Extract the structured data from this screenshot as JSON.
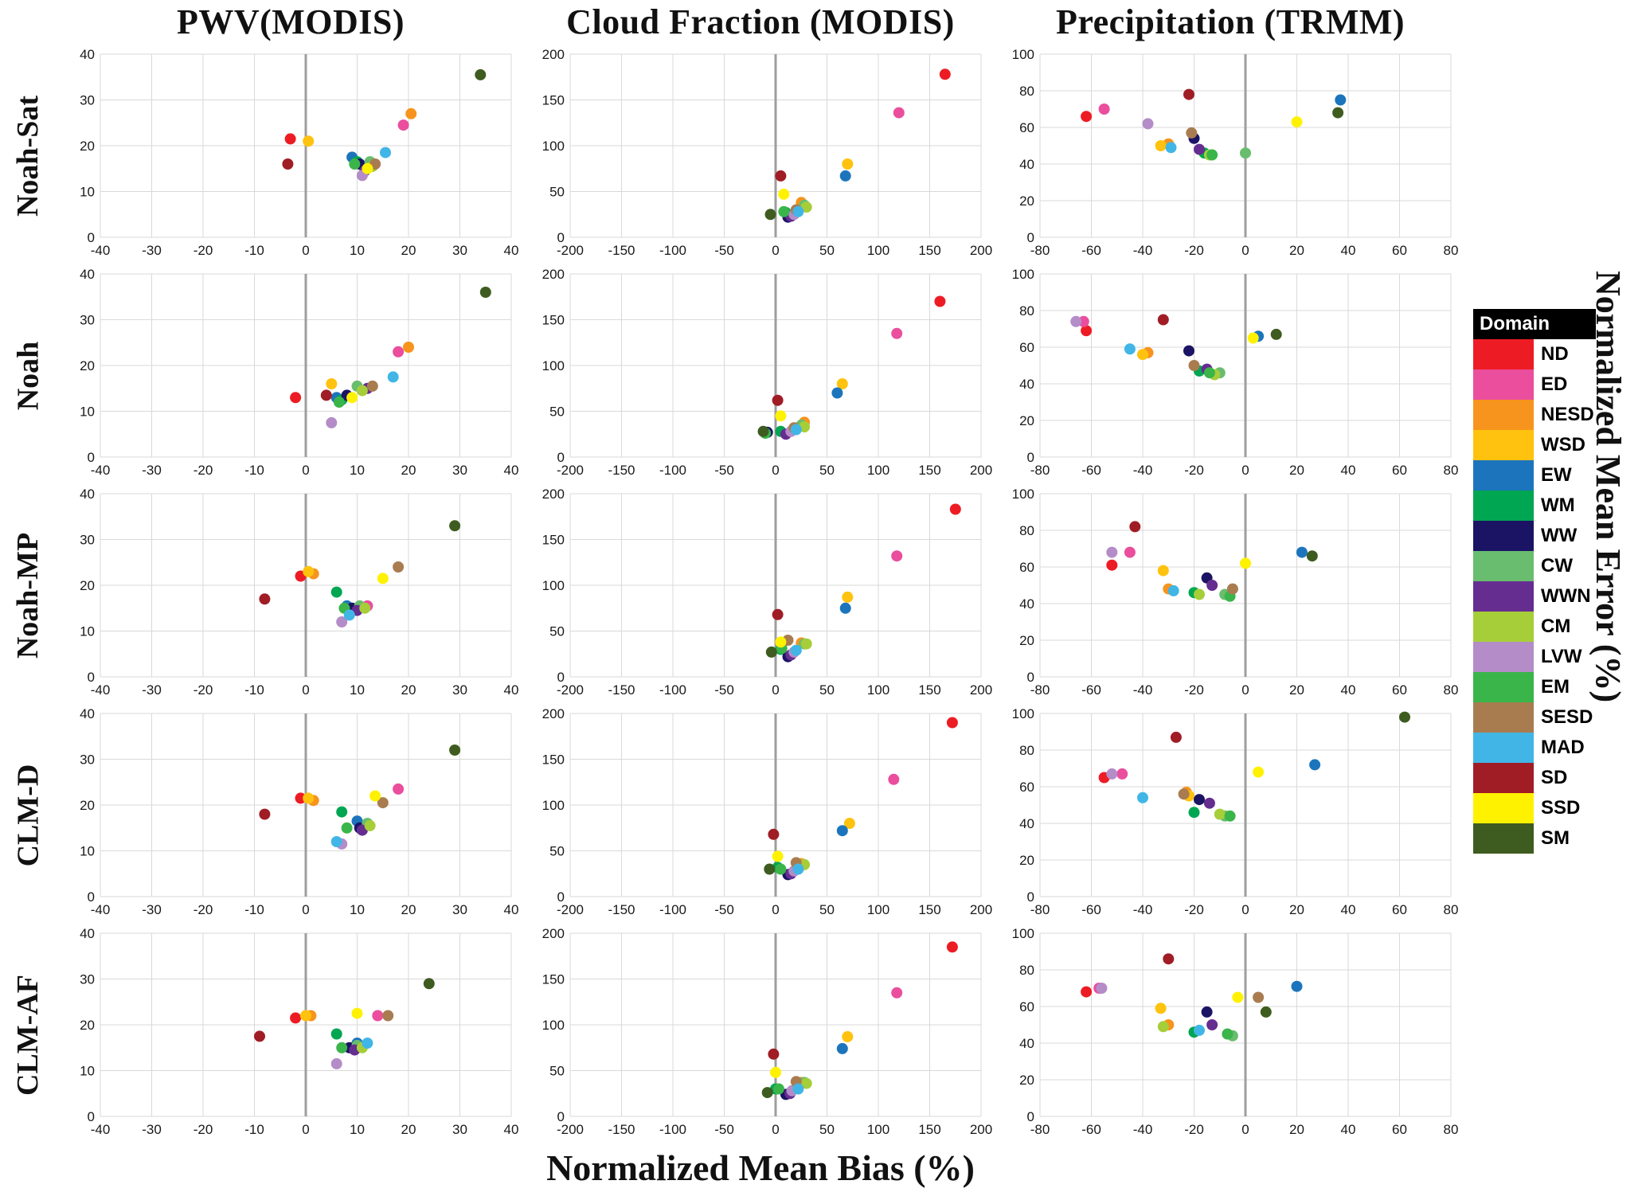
{
  "columns": [
    {
      "title": "PWV(MODIS)"
    },
    {
      "title": "Cloud Fraction (MODIS)"
    },
    {
      "title": "Precipitation (TRMM)"
    }
  ],
  "rows": [
    "Noah-Sat",
    "Noah",
    "Noah-MP",
    "CLM-D",
    "CLM-AF"
  ],
  "axis": {
    "x_label": "Normalized Mean Bias  (%)",
    "y_label": "Normalized Mean Error (%)"
  },
  "style": {
    "gridline_color": "#D9D9D9",
    "zero_line_color": "#9E9E9E",
    "point_radius": 7
  },
  "legend": {
    "header": "Domain",
    "items": [
      {
        "label": "ND",
        "color": "#ED1C24"
      },
      {
        "label": "ED",
        "color": "#EA4E9D"
      },
      {
        "label": "NESD",
        "color": "#F7941D"
      },
      {
        "label": "WSD",
        "color": "#FFC20E"
      },
      {
        "label": "EW",
        "color": "#1C75BC"
      },
      {
        "label": "WM",
        "color": "#00A651"
      },
      {
        "label": "WW",
        "color": "#1B1464"
      },
      {
        "label": "CW",
        "color": "#69BD6E"
      },
      {
        "label": "WWN",
        "color": "#662D91"
      },
      {
        "label": "CM",
        "color": "#A6CE39"
      },
      {
        "label": "LVW",
        "color": "#B48CC8"
      },
      {
        "label": "EM",
        "color": "#3AB54A"
      },
      {
        "label": "SESD",
        "color": "#A97C50"
      },
      {
        "label": "MAD",
        "color": "#41B6E6"
      },
      {
        "label": "SD",
        "color": "#A01D26"
      },
      {
        "label": "SSD",
        "color": "#FFF200"
      },
      {
        "label": "SM",
        "color": "#3E5C1F"
      }
    ]
  },
  "chart_data": [
    {
      "type": "scatter",
      "model": "Noah-Sat",
      "variable": "PWV(MODIS)",
      "xlim": [
        -40,
        40
      ],
      "xstep": 10,
      "ylim": [
        0,
        40
      ],
      "ystep": 10,
      "points": {
        "ND": [
          -3,
          21.5
        ],
        "ED": [
          19,
          24.5
        ],
        "NESD": [
          20.5,
          27
        ],
        "WSD": [
          0.5,
          21
        ],
        "EW": [
          9,
          17.5
        ],
        "WM": [
          10,
          16.5
        ],
        "WW": [
          10.5,
          16
        ],
        "CW": [
          12.5,
          16.5
        ],
        "WWN": [
          11.5,
          14.5
        ],
        "CM": [
          13,
          15.5
        ],
        "LVW": [
          11,
          13.5
        ],
        "EM": [
          9.5,
          16
        ],
        "SESD": [
          13.5,
          16
        ],
        "MAD": [
          15.5,
          18.5
        ],
        "SD": [
          -3.5,
          16
        ],
        "SSD": [
          12,
          15
        ],
        "SM": [
          34,
          35.5
        ]
      }
    },
    {
      "type": "scatter",
      "model": "Noah-Sat",
      "variable": "Cloud Fraction (MODIS)",
      "xlim": [
        -200,
        200
      ],
      "xstep": 50,
      "ylim": [
        0,
        200
      ],
      "ystep": 50,
      "points": {
        "ND": [
          165,
          178
        ],
        "ED": [
          120,
          136
        ],
        "NESD": [
          25,
          38
        ],
        "WSD": [
          70,
          80
        ],
        "EW": [
          68,
          67
        ],
        "WM": [
          10,
          27
        ],
        "WW": [
          12,
          22
        ],
        "CW": [
          28,
          35
        ],
        "WWN": [
          15,
          23
        ],
        "CM": [
          30,
          33
        ],
        "LVW": [
          18,
          25
        ],
        "EM": [
          8,
          28
        ],
        "SESD": [
          20,
          30
        ],
        "MAD": [
          22,
          28
        ],
        "SD": [
          5,
          67
        ],
        "SSD": [
          8,
          47
        ],
        "SM": [
          -5,
          25
        ]
      }
    },
    {
      "type": "scatter",
      "model": "Noah-Sat",
      "variable": "Precipitation (TRMM)",
      "xlim": [
        -80,
        80
      ],
      "xstep": 20,
      "ylim": [
        0,
        100
      ],
      "ystep": 20,
      "points": {
        "ND": [
          -62,
          66
        ],
        "ED": [
          -55,
          70
        ],
        "NESD": [
          -30,
          51
        ],
        "WSD": [
          -33,
          50
        ],
        "EW": [
          37,
          75
        ],
        "WM": [
          -16,
          46
        ],
        "WW": [
          -20,
          54
        ],
        "CW": [
          0,
          46
        ],
        "WWN": [
          -18,
          48
        ],
        "CM": [
          -14,
          45
        ],
        "LVW": [
          -38,
          62
        ],
        "EM": [
          -13,
          45
        ],
        "SESD": [
          -21,
          57
        ],
        "MAD": [
          -29,
          49
        ],
        "SD": [
          -22,
          78
        ],
        "SSD": [
          20,
          63
        ],
        "SM": [
          36,
          68
        ]
      }
    },
    {
      "type": "scatter",
      "model": "Noah",
      "variable": "PWV(MODIS)",
      "xlim": [
        -40,
        40
      ],
      "xstep": 10,
      "ylim": [
        0,
        40
      ],
      "ystep": 10,
      "points": {
        "ND": [
          -2,
          13
        ],
        "ED": [
          18,
          23
        ],
        "NESD": [
          20,
          24
        ],
        "WSD": [
          5,
          16
        ],
        "EW": [
          6,
          13
        ],
        "WM": [
          7,
          12.5
        ],
        "WW": [
          8,
          13.5
        ],
        "CW": [
          10,
          15.5
        ],
        "WWN": [
          12,
          15
        ],
        "CM": [
          11,
          14.5
        ],
        "LVW": [
          5,
          7.5
        ],
        "EM": [
          6.5,
          12
        ],
        "SESD": [
          13,
          15.5
        ],
        "MAD": [
          17,
          17.5
        ],
        "SD": [
          4,
          13.5
        ],
        "SSD": [
          9,
          13
        ],
        "SM": [
          35,
          36
        ]
      }
    },
    {
      "type": "scatter",
      "model": "Noah",
      "variable": "Cloud Fraction (MODIS)",
      "xlim": [
        -200,
        200
      ],
      "xstep": 50,
      "ylim": [
        0,
        200
      ],
      "ystep": 50,
      "points": {
        "ND": [
          160,
          170
        ],
        "ED": [
          118,
          135
        ],
        "NESD": [
          28,
          38
        ],
        "WSD": [
          65,
          80
        ],
        "EW": [
          60,
          70
        ],
        "WM": [
          5,
          28
        ],
        "WW": [
          -8,
          27
        ],
        "CW": [
          25,
          35
        ],
        "WWN": [
          10,
          25
        ],
        "CM": [
          28,
          33
        ],
        "LVW": [
          15,
          28
        ],
        "EM": [
          -10,
          26
        ],
        "SESD": [
          18,
          32
        ],
        "MAD": [
          20,
          30
        ],
        "SD": [
          2,
          62
        ],
        "SSD": [
          5,
          45
        ],
        "SM": [
          -12,
          28
        ]
      }
    },
    {
      "type": "scatter",
      "model": "Noah",
      "variable": "Precipitation (TRMM)",
      "xlim": [
        -80,
        80
      ],
      "xstep": 20,
      "ylim": [
        0,
        100
      ],
      "ystep": 20,
      "points": {
        "ND": [
          -62,
          69
        ],
        "ED": [
          -63,
          74
        ],
        "NESD": [
          -38,
          57
        ],
        "WSD": [
          -40,
          56
        ],
        "EW": [
          5,
          66
        ],
        "WM": [
          -18,
          47
        ],
        "WW": [
          -22,
          58
        ],
        "CW": [
          -10,
          46
        ],
        "WWN": [
          -15,
          48
        ],
        "CM": [
          -12,
          45
        ],
        "LVW": [
          -66,
          74
        ],
        "EM": [
          -14,
          46
        ],
        "SESD": [
          -20,
          50
        ],
        "MAD": [
          -45,
          59
        ],
        "SD": [
          -32,
          75
        ],
        "SSD": [
          3,
          65
        ],
        "SM": [
          12,
          67
        ]
      }
    },
    {
      "type": "scatter",
      "model": "Noah-MP",
      "variable": "PWV(MODIS)",
      "xlim": [
        -40,
        40
      ],
      "xstep": 10,
      "ylim": [
        0,
        40
      ],
      "ystep": 10,
      "points": {
        "ND": [
          -1,
          22
        ],
        "ED": [
          12,
          15.5
        ],
        "NESD": [
          1.5,
          22.5
        ],
        "WSD": [
          0.5,
          23
        ],
        "EW": [
          8,
          15.5
        ],
        "WM": [
          6,
          18.5
        ],
        "WW": [
          9,
          15
        ],
        "CW": [
          10.5,
          15.5
        ],
        "WWN": [
          10,
          14.5
        ],
        "CM": [
          11.5,
          15
        ],
        "LVW": [
          7,
          12
        ],
        "EM": [
          7.5,
          15
        ],
        "SESD": [
          18,
          24
        ],
        "MAD": [
          8.5,
          13.5
        ],
        "SD": [
          -8,
          17
        ],
        "SSD": [
          15,
          21.5
        ],
        "SM": [
          29,
          33
        ]
      }
    },
    {
      "type": "scatter",
      "model": "Noah-MP",
      "variable": "Cloud Fraction (MODIS)",
      "xlim": [
        -200,
        200
      ],
      "xstep": 50,
      "ylim": [
        0,
        200
      ],
      "ystep": 50,
      "points": {
        "ND": [
          175,
          183
        ],
        "ED": [
          118,
          132
        ],
        "NESD": [
          25,
          37
        ],
        "WSD": [
          70,
          87
        ],
        "EW": [
          68,
          75
        ],
        "WM": [
          5,
          30
        ],
        "WW": [
          12,
          22
        ],
        "CW": [
          28,
          36
        ],
        "WWN": [
          15,
          24
        ],
        "CM": [
          30,
          36
        ],
        "LVW": [
          18,
          27
        ],
        "EM": [
          6,
          31
        ],
        "SESD": [
          12,
          40
        ],
        "MAD": [
          20,
          29
        ],
        "SD": [
          2,
          68
        ],
        "SSD": [
          5,
          38
        ],
        "SM": [
          -4,
          27
        ]
      }
    },
    {
      "type": "scatter",
      "model": "Noah-MP",
      "variable": "Precipitation (TRMM)",
      "xlim": [
        -80,
        80
      ],
      "xstep": 20,
      "ylim": [
        0,
        100
      ],
      "ystep": 20,
      "points": {
        "ND": [
          -52,
          61
        ],
        "ED": [
          -45,
          68
        ],
        "NESD": [
          -30,
          48
        ],
        "WSD": [
          -32,
          58
        ],
        "EW": [
          22,
          68
        ],
        "WM": [
          -20,
          46
        ],
        "WW": [
          -15,
          54
        ],
        "CW": [
          -8,
          45
        ],
        "WWN": [
          -13,
          50
        ],
        "CM": [
          -18,
          45
        ],
        "LVW": [
          -52,
          68
        ],
        "EM": [
          -6,
          44
        ],
        "SESD": [
          -5,
          48
        ],
        "MAD": [
          -28,
          47
        ],
        "SD": [
          -43,
          82
        ],
        "SSD": [
          0,
          62
        ],
        "SM": [
          26,
          66
        ]
      }
    },
    {
      "type": "scatter",
      "model": "CLM-D",
      "variable": "PWV(MODIS)",
      "xlim": [
        -40,
        40
      ],
      "xstep": 10,
      "ylim": [
        0,
        40
      ],
      "ystep": 10,
      "points": {
        "ND": [
          -1,
          21.5
        ],
        "ED": [
          18,
          23.5
        ],
        "NESD": [
          1.5,
          21
        ],
        "WSD": [
          0.5,
          21.5
        ],
        "EW": [
          10,
          16.5
        ],
        "WM": [
          7,
          18.5
        ],
        "WW": [
          10.5,
          15
        ],
        "CW": [
          12,
          16
        ],
        "WWN": [
          11,
          14.5
        ],
        "CM": [
          12.5,
          15.5
        ],
        "LVW": [
          7,
          11.5
        ],
        "EM": [
          8,
          15
        ],
        "SESD": [
          15,
          20.5
        ],
        "MAD": [
          6,
          12
        ],
        "SD": [
          -8,
          18
        ],
        "SSD": [
          13.5,
          22
        ],
        "SM": [
          29,
          32
        ]
      }
    },
    {
      "type": "scatter",
      "model": "CLM-D",
      "variable": "Cloud Fraction (MODIS)",
      "xlim": [
        -200,
        200
      ],
      "xstep": 50,
      "ylim": [
        0,
        200
      ],
      "ystep": 50,
      "points": {
        "ND": [
          172,
          190
        ],
        "ED": [
          115,
          128
        ],
        "NESD": [
          25,
          36
        ],
        "WSD": [
          72,
          80
        ],
        "EW": [
          65,
          72
        ],
        "WM": [
          2,
          32
        ],
        "WW": [
          12,
          24
        ],
        "CW": [
          25,
          34
        ],
        "WWN": [
          15,
          25
        ],
        "CM": [
          28,
          35
        ],
        "LVW": [
          18,
          28
        ],
        "EM": [
          5,
          30
        ],
        "SESD": [
          20,
          37
        ],
        "MAD": [
          22,
          30
        ],
        "SD": [
          -2,
          68
        ],
        "SSD": [
          2,
          44
        ],
        "SM": [
          -6,
          30
        ]
      }
    },
    {
      "type": "scatter",
      "model": "CLM-D",
      "variable": "Precipitation (TRMM)",
      "xlim": [
        -80,
        80
      ],
      "xstep": 20,
      "ylim": [
        0,
        100
      ],
      "ystep": 20,
      "points": {
        "ND": [
          -55,
          65
        ],
        "ED": [
          -48,
          67
        ],
        "NESD": [
          -23,
          57
        ],
        "WSD": [
          -22,
          55
        ],
        "EW": [
          27,
          72
        ],
        "WM": [
          -20,
          46
        ],
        "WW": [
          -18,
          53
        ],
        "CW": [
          -8,
          44
        ],
        "WWN": [
          -14,
          51
        ],
        "CM": [
          -10,
          45
        ],
        "LVW": [
          -52,
          67
        ],
        "EM": [
          -6,
          44
        ],
        "SESD": [
          -24,
          56
        ],
        "MAD": [
          -40,
          54
        ],
        "SD": [
          -27,
          87
        ],
        "SSD": [
          5,
          68
        ],
        "SM": [
          62,
          98
        ]
      }
    },
    {
      "type": "scatter",
      "model": "CLM-AF",
      "variable": "PWV(MODIS)",
      "xlim": [
        -40,
        40
      ],
      "xstep": 10,
      "ylim": [
        0,
        40
      ],
      "ystep": 10,
      "points": {
        "ND": [
          -2,
          21.5
        ],
        "ED": [
          14,
          22
        ],
        "NESD": [
          1,
          22
        ],
        "WSD": [
          0,
          22
        ],
        "EW": [
          10,
          16
        ],
        "WM": [
          6,
          18
        ],
        "WW": [
          8.5,
          15
        ],
        "CW": [
          10,
          15.5
        ],
        "WWN": [
          9.5,
          14.5
        ],
        "CM": [
          11,
          15
        ],
        "LVW": [
          6,
          11.5
        ],
        "EM": [
          7,
          15
        ],
        "SESD": [
          16,
          22
        ],
        "MAD": [
          12,
          16
        ],
        "SD": [
          -9,
          17.5
        ],
        "SSD": [
          10,
          22.5
        ],
        "SM": [
          24,
          29
        ]
      }
    },
    {
      "type": "scatter",
      "model": "CLM-AF",
      "variable": "Cloud Fraction (MODIS)",
      "xlim": [
        -200,
        200
      ],
      "xstep": 50,
      "ylim": [
        0,
        200
      ],
      "ystep": 50,
      "points": {
        "ND": [
          172,
          185
        ],
        "ED": [
          118,
          135
        ],
        "NESD": [
          25,
          37
        ],
        "WSD": [
          70,
          87
        ],
        "EW": [
          65,
          74
        ],
        "WM": [
          0,
          30
        ],
        "WW": [
          10,
          24
        ],
        "CW": [
          28,
          37
        ],
        "WWN": [
          14,
          25
        ],
        "CM": [
          30,
          36
        ],
        "LVW": [
          16,
          28
        ],
        "EM": [
          3,
          30
        ],
        "SESD": [
          20,
          38
        ],
        "MAD": [
          22,
          30
        ],
        "SD": [
          -2,
          68
        ],
        "SSD": [
          0,
          48
        ],
        "SM": [
          -8,
          26
        ]
      }
    },
    {
      "type": "scatter",
      "model": "CLM-AF",
      "variable": "Precipitation (TRMM)",
      "xlim": [
        -80,
        80
      ],
      "xstep": 20,
      "ylim": [
        0,
        100
      ],
      "ystep": 20,
      "points": {
        "ND": [
          -62,
          68
        ],
        "ED": [
          -57,
          70
        ],
        "NESD": [
          -30,
          50
        ],
        "WSD": [
          -33,
          59
        ],
        "EW": [
          20,
          71
        ],
        "WM": [
          -20,
          46
        ],
        "WW": [
          -15,
          57
        ],
        "CW": [
          -5,
          44
        ],
        "WWN": [
          -13,
          50
        ],
        "CM": [
          -32,
          49
        ],
        "LVW": [
          -56,
          70
        ],
        "EM": [
          -7,
          45
        ],
        "SESD": [
          5,
          65
        ],
        "MAD": [
          -18,
          47
        ],
        "SD": [
          -30,
          86
        ],
        "SSD": [
          -3,
          65
        ],
        "SM": [
          8,
          57
        ]
      }
    }
  ]
}
